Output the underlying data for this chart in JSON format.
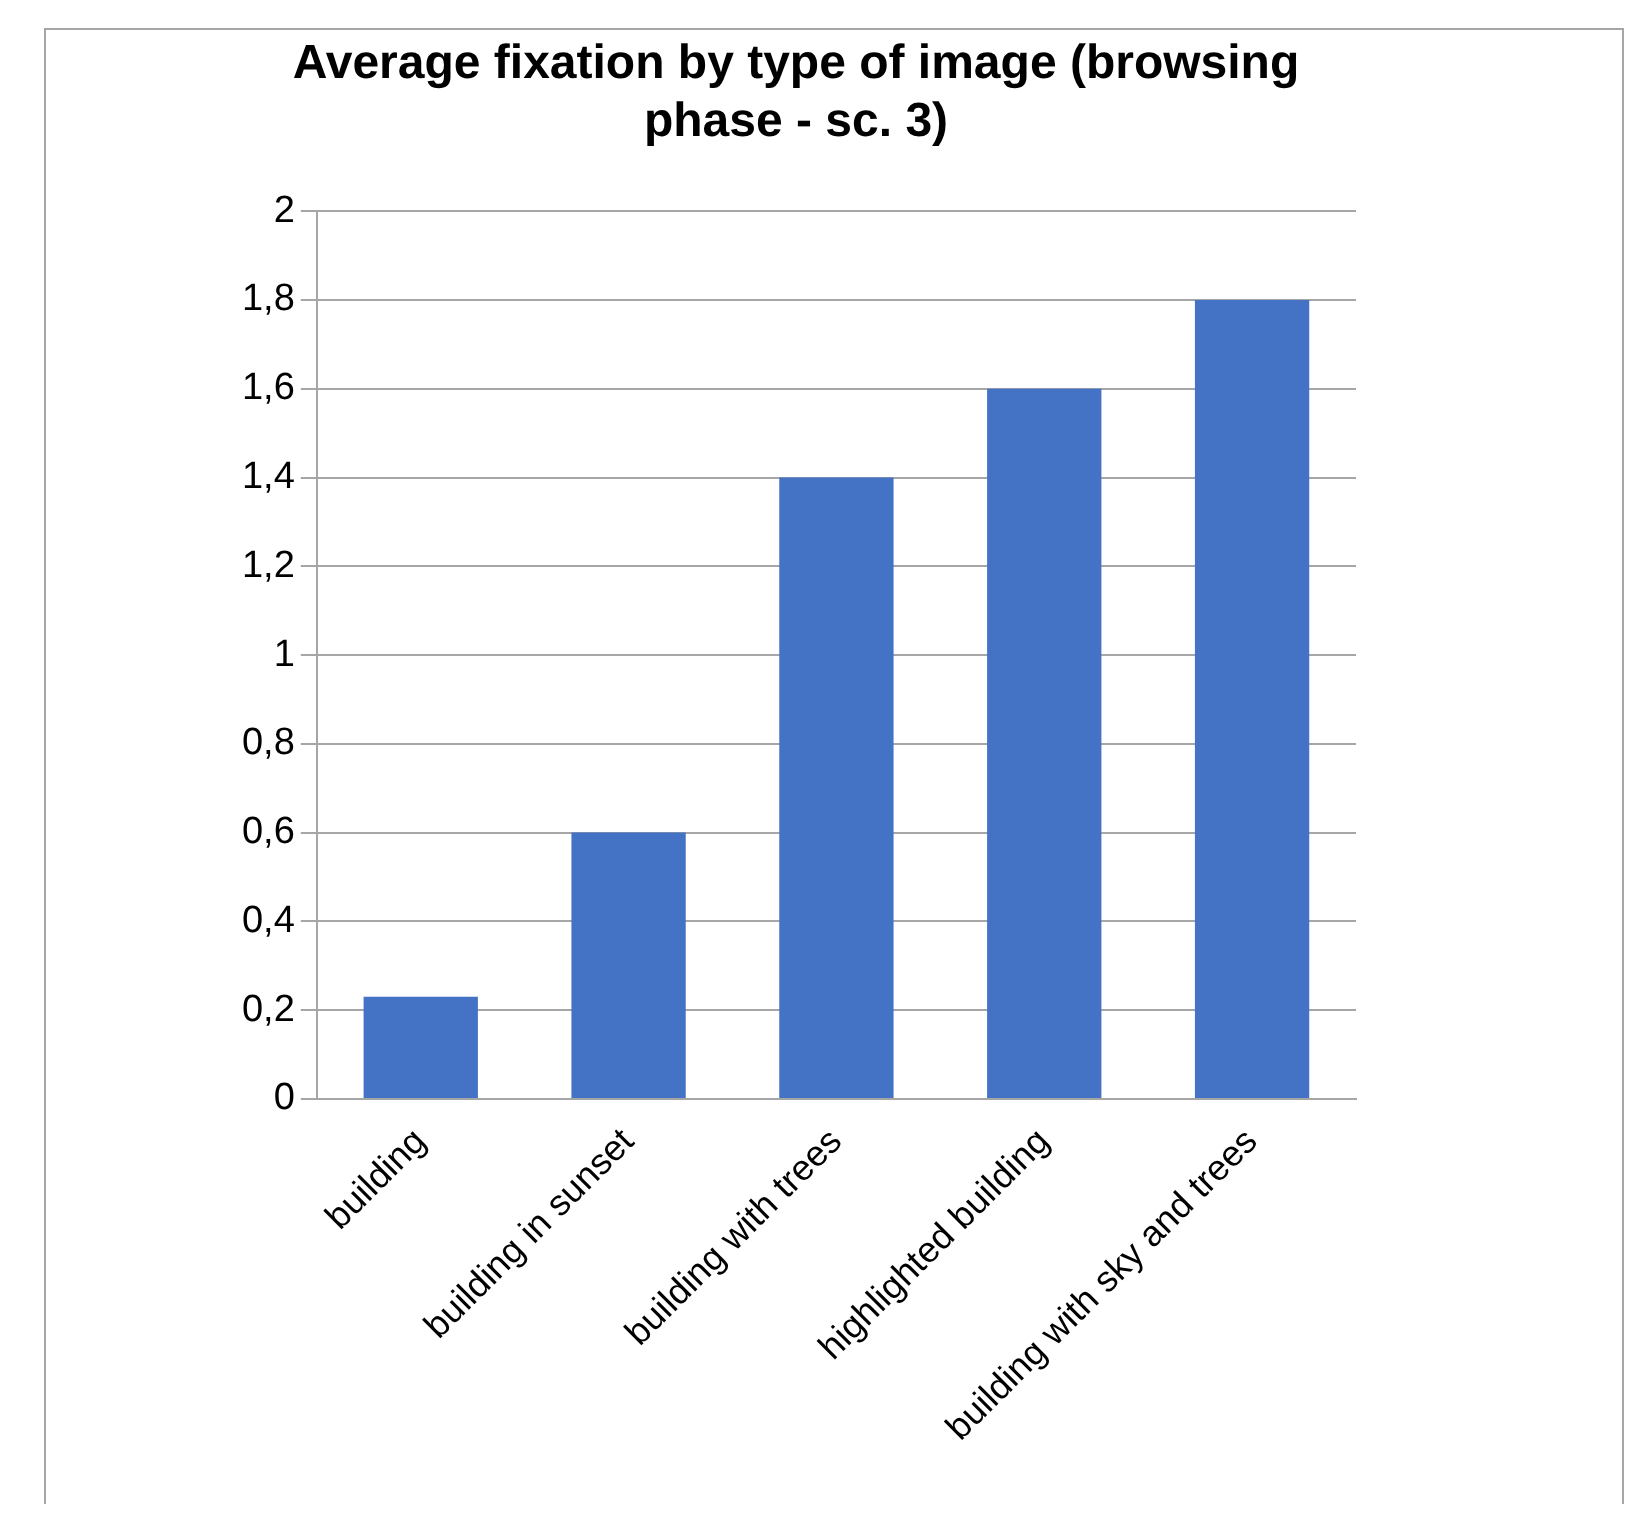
{
  "chart_data": {
    "type": "bar",
    "title": "Average fixation by type of image (browsing phase - sc. 3)",
    "categories": [
      "building",
      "building in sunset",
      "building with trees",
      "highlighted building",
      "building with sky and trees"
    ],
    "values": [
      0.23,
      0.6,
      1.4,
      1.6,
      1.8
    ],
    "color": "#4472c4",
    "ylim": [
      0,
      2
    ],
    "yticks": [
      {
        "value": 0,
        "label": "0"
      },
      {
        "value": 0.2,
        "label": "0,2"
      },
      {
        "value": 0.4,
        "label": "0,4"
      },
      {
        "value": 0.6,
        "label": "0,6"
      },
      {
        "value": 0.8,
        "label": "0,8"
      },
      {
        "value": 1,
        "label": "1"
      },
      {
        "value": 1.2,
        "label": "1,2"
      },
      {
        "value": 1.4,
        "label": "1,4"
      },
      {
        "value": 1.6,
        "label": "1,6"
      },
      {
        "value": 1.8,
        "label": "1,8"
      },
      {
        "value": 2,
        "label": "2"
      }
    ],
    "grid": "y",
    "legend": false
  }
}
